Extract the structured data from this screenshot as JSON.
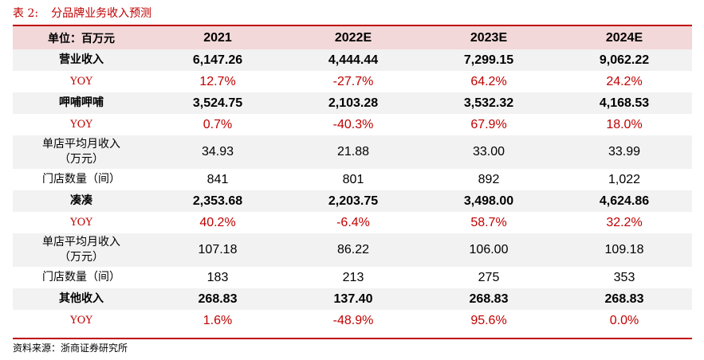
{
  "caption": {
    "label": "表 2:",
    "title": "分品牌业务收入预测"
  },
  "table": {
    "header": [
      "单位：百万元",
      "2021",
      "2022E",
      "2023E",
      "2024E"
    ],
    "rows": [
      {
        "label": "营业收入",
        "values": [
          "6,147.26",
          "4,444.44",
          "7,299.15",
          "9,062.22"
        ]
      },
      {
        "label": "YOY",
        "values": [
          "12.7%",
          "-27.7%",
          "64.2%",
          "24.2%"
        ]
      },
      {
        "label": "呷哺呷哺",
        "values": [
          "3,524.75",
          "2,103.28",
          "3,532.32",
          "4,168.53"
        ]
      },
      {
        "label": "YOY",
        "values": [
          "0.7%",
          "-40.3%",
          "67.9%",
          "18.0%"
        ]
      },
      {
        "label_line1": "单店平均月收入",
        "label_line2": "（万元）",
        "values": [
          "34.93",
          "21.88",
          "33.00",
          "33.99"
        ]
      },
      {
        "label": "门店数量（间）",
        "values": [
          "841",
          "801",
          "892",
          "1,022"
        ]
      },
      {
        "label": "凑凑",
        "values": [
          "2,353.68",
          "2,203.75",
          "3,498.00",
          "4,624.86"
        ]
      },
      {
        "label": "YOY",
        "values": [
          "40.2%",
          "-6.4%",
          "58.7%",
          "32.2%"
        ]
      },
      {
        "label_line1": "单店平均月收入",
        "label_line2": "（万元）",
        "values": [
          "107.18",
          "86.22",
          "106.00",
          "109.18"
        ]
      },
      {
        "label": "门店数量（间）",
        "values": [
          "183",
          "213",
          "275",
          "353"
        ]
      },
      {
        "label": "其他收入",
        "values": [
          "268.83",
          "137.40",
          "268.83",
          "268.83"
        ]
      },
      {
        "label": "YOY",
        "values": [
          "1.6%",
          "-48.9%",
          "95.6%",
          "0.0%"
        ]
      }
    ]
  },
  "source": "资料来源：浙商证券研究所",
  "colors": {
    "accent_red": "#c00000",
    "header_bg": "#f2d8d8",
    "stripe_bg": "#f2f2f2"
  }
}
